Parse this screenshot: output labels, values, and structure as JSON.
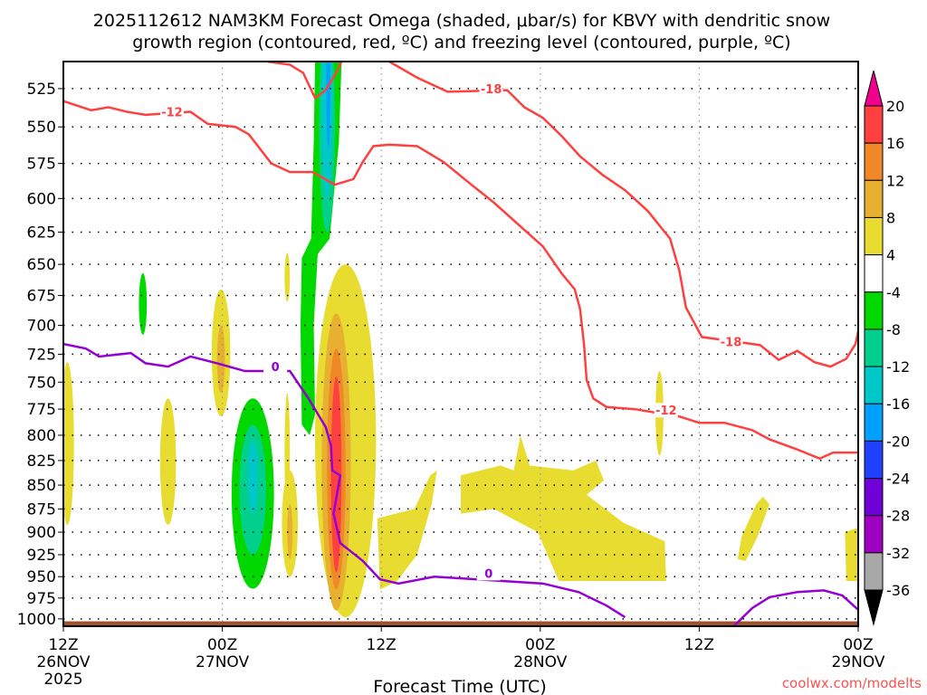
{
  "chart_data": {
    "type": "heatmap",
    "title_line1": "2025112612 NAM3KM Forecast Omega (shaded, μbar/s) for KBVY with dendritic snow",
    "title_line2": "growth region (contoured, red, ºC) and freezing level (contoured, purple, ºC)",
    "xlabel": "Forecast Time (UTC)",
    "credit": "coolwx.com/modelts",
    "xlim_hours": [
      0,
      60
    ],
    "ylim_hPa": [
      508,
      1009
    ],
    "yscale": "log",
    "y_ticks": [
      525,
      550,
      575,
      600,
      625,
      650,
      675,
      700,
      725,
      750,
      775,
      800,
      825,
      850,
      875,
      900,
      925,
      950,
      975,
      1000
    ],
    "x_ticks": [
      {
        "hour": 0,
        "l1": "12Z",
        "l2": "26NOV",
        "l3": "2025"
      },
      {
        "hour": 12,
        "l1": "00Z",
        "l2": "27NOV",
        "l3": ""
      },
      {
        "hour": 24,
        "l1": "12Z",
        "l2": "",
        "l3": ""
      },
      {
        "hour": 36,
        "l1": "00Z",
        "l2": "28NOV",
        "l3": ""
      },
      {
        "hour": 48,
        "l1": "12Z",
        "l2": "",
        "l3": ""
      },
      {
        "hour": 60,
        "l1": "00Z",
        "l2": "29NOV",
        "l3": ""
      }
    ],
    "colorbar": {
      "labels": [
        "20",
        "16",
        "12",
        "8",
        "4",
        "-4",
        "-8",
        "-12",
        "-16",
        "-20",
        "-24",
        "-28",
        "-32",
        "-36"
      ],
      "colors": [
        "#ff4040",
        "#f08828",
        "#e8b030",
        "#e8dc30",
        "#ffffff",
        "#00d800",
        "#00d08c",
        "#00c8c8",
        "#00a0ff",
        "#2040ff",
        "#7000d8",
        "#a000c0",
        "#a8a8a8"
      ],
      "over_color": "#f0008c",
      "under_color": "#000000"
    },
    "ground_color": "#a0522d",
    "omega_ellipses": [
      {
        "c": "#e8dc30",
        "h": 0.3,
        "dh": 0.5,
        "p": [
          732,
          892
        ]
      },
      {
        "c": "#00d800",
        "h": 6,
        "dh": 0.3,
        "p": [
          657,
          708
        ]
      },
      {
        "c": "#e8dc30",
        "h": 7.9,
        "dh": 0.6,
        "p": [
          765,
          892
        ]
      },
      {
        "c": "#e8dc30",
        "h": 11.9,
        "dh": 0.7,
        "p": [
          670,
          782
        ]
      },
      {
        "c": "#e8b030",
        "h": 11.9,
        "dh": 0.3,
        "p": [
          700,
          760
        ]
      },
      {
        "c": "#00d800",
        "h": 14.3,
        "dh": 1.6,
        "p": [
          765,
          964
        ]
      },
      {
        "c": "#00d08c",
        "h": 14.3,
        "dh": 1.0,
        "p": [
          790,
          925
        ]
      },
      {
        "c": "#00c8c8",
        "h": 14.3,
        "dh": 0.4,
        "p": [
          805,
          880
        ]
      },
      {
        "c": "#e8dc30",
        "h": 17.1,
        "dh": 0.6,
        "p": [
          835,
          950
        ]
      },
      {
        "c": "#e8b030",
        "h": 17.1,
        "dh": 0.2,
        "p": [
          870,
          930
        ]
      },
      {
        "c": "#e8dc30",
        "h": 16.9,
        "dh": 0.2,
        "p": [
          641,
          680
        ]
      },
      {
        "c": "#e8dc30",
        "h": 16.9,
        "dh": 0.2,
        "p": [
          760,
          880
        ]
      },
      {
        "c": "#00d08c",
        "h": 19.9,
        "dh": 0.6,
        "p": [
          480,
          625
        ]
      },
      {
        "c": "#00c8c8",
        "h": 19.9,
        "dh": 0.4,
        "p": [
          480,
          600
        ]
      },
      {
        "c": "#00a0ff",
        "h": 20.0,
        "dh": 0.15,
        "p": [
          480,
          565
        ]
      },
      {
        "c": "#e8dc30",
        "h": 21.3,
        "dh": 2.3,
        "p": [
          650,
          998
        ]
      },
      {
        "c": "#e8b030",
        "h": 20.6,
        "dh": 1.1,
        "p": [
          690,
          990
        ]
      },
      {
        "c": "#f08828",
        "h": 20.6,
        "dh": 0.7,
        "p": [
          720,
          965
        ]
      },
      {
        "c": "#ff4040",
        "h": 20.6,
        "dh": 0.4,
        "p": [
          745,
          945
        ]
      },
      {
        "c": "#e8dc30",
        "h": 45,
        "dh": 0.3,
        "p": [
          740,
          820
        ]
      }
    ],
    "omega_polygons": [
      {
        "c": "#00d800",
        "pts": [
          [
            19,
            508
          ],
          [
            21,
            508
          ],
          [
            20.8,
            560
          ],
          [
            20.1,
            630
          ],
          [
            19.2,
            642
          ],
          [
            18.9,
            700
          ],
          [
            19,
            780
          ],
          [
            18.6,
            800
          ],
          [
            18,
            790
          ],
          [
            17.9,
            700
          ],
          [
            18,
            645
          ],
          [
            18.7,
            630
          ],
          [
            18.9,
            560
          ]
        ]
      },
      {
        "c": "#e8dc30",
        "pts": [
          [
            23.9,
            965
          ],
          [
            23.7,
            885
          ],
          [
            26.5,
            875
          ],
          [
            27.7,
            840
          ],
          [
            28.2,
            835
          ],
          [
            27.8,
            870
          ],
          [
            26.7,
            925
          ],
          [
            25.2,
            955
          ]
        ]
      },
      {
        "c": "#e8dc30",
        "pts": [
          [
            30,
            880
          ],
          [
            30,
            840
          ],
          [
            33,
            830
          ],
          [
            34,
            835
          ],
          [
            34.5,
            800
          ],
          [
            35.2,
            830
          ],
          [
            38.5,
            835
          ],
          [
            40.2,
            825
          ],
          [
            40.8,
            845
          ],
          [
            39.5,
            860
          ],
          [
            42.3,
            890
          ],
          [
            45.4,
            910
          ],
          [
            45.5,
            955
          ],
          [
            37.4,
            955
          ],
          [
            35.8,
            900
          ],
          [
            32.5,
            875
          ]
        ]
      },
      {
        "c": "#e8dc30",
        "pts": [
          [
            50.9,
            930
          ],
          [
            51.2,
            905
          ],
          [
            52.3,
            870
          ],
          [
            52.8,
            862
          ],
          [
            53.3,
            870
          ],
          [
            52.4,
            905
          ],
          [
            51.5,
            932
          ]
        ]
      },
      {
        "c": "#e8dc30",
        "pts": [
          [
            59.1,
            955
          ],
          [
            59,
            900
          ],
          [
            60,
            895
          ],
          [
            60,
            955
          ]
        ]
      }
    ],
    "contours": [
      {
        "name": "minus12-contour",
        "value": "-12",
        "color": "#ff4040",
        "labels": [
          [
            8.2,
            540
          ],
          [
            45.5,
            776
          ]
        ],
        "pts": [
          [
            0,
            533
          ],
          [
            2.1,
            539
          ],
          [
            3.4,
            537
          ],
          [
            4.8,
            540
          ],
          [
            6.2,
            542
          ],
          [
            9.6,
            540
          ],
          [
            10.9,
            548
          ],
          [
            13,
            550
          ],
          [
            14,
            555
          ],
          [
            15.7,
            575
          ],
          [
            17.1,
            581
          ],
          [
            18.8,
            581
          ],
          [
            20.5,
            590
          ],
          [
            21.9,
            586
          ],
          [
            22.6,
            574
          ],
          [
            23.4,
            563
          ],
          [
            24.6,
            562
          ],
          [
            26.7,
            563
          ],
          [
            28.7,
            574
          ],
          [
            30.8,
            590
          ],
          [
            32.5,
            603
          ],
          [
            34.2,
            618
          ],
          [
            36.2,
            636
          ],
          [
            37.6,
            657
          ],
          [
            38.6,
            670
          ],
          [
            39,
            686
          ],
          [
            39.3,
            716
          ],
          [
            39.5,
            748
          ],
          [
            40,
            765
          ],
          [
            41,
            773
          ],
          [
            43.1,
            775
          ],
          [
            46.5,
            782
          ],
          [
            48,
            788
          ],
          [
            49.9,
            788
          ],
          [
            52,
            795
          ],
          [
            53.3,
            804
          ],
          [
            55.4,
            814
          ],
          [
            57.1,
            823
          ],
          [
            58.1,
            817
          ],
          [
            60,
            817
          ]
        ]
      },
      {
        "name": "minus18-contour-top",
        "value": "-18",
        "color": "#ff4040",
        "labels": [],
        "pts": [
          [
            15.4,
            508
          ],
          [
            17.1,
            510
          ],
          [
            18.1,
            515
          ],
          [
            19,
            531
          ],
          [
            19.8,
            526
          ],
          [
            20.6,
            515
          ],
          [
            21,
            508
          ]
        ]
      },
      {
        "name": "minus18-contour",
        "value": "-18",
        "color": "#ff4040",
        "labels": [
          [
            32.3,
            525
          ],
          [
            50.4,
            714
          ]
        ],
        "pts": [
          [
            24.6,
            508
          ],
          [
            26.7,
            518
          ],
          [
            29,
            527
          ],
          [
            33.5,
            526
          ],
          [
            34.8,
            537
          ],
          [
            36.2,
            544
          ],
          [
            37.6,
            556
          ],
          [
            39,
            570
          ],
          [
            40.7,
            583
          ],
          [
            42.4,
            594
          ],
          [
            44.1,
            609
          ],
          [
            45.8,
            630
          ],
          [
            46.5,
            655
          ],
          [
            47,
            685
          ],
          [
            48.2,
            710
          ],
          [
            52.6,
            717
          ],
          [
            54,
            730
          ],
          [
            55.4,
            722
          ],
          [
            56.7,
            732
          ],
          [
            57.9,
            736
          ],
          [
            59.1,
            729
          ],
          [
            59.8,
            716
          ],
          [
            60,
            705
          ]
        ]
      },
      {
        "name": "freezing-level-contour",
        "value": "0",
        "color": "#9400d3",
        "labels": [
          [
            16,
            736
          ],
          [
            32.1,
            946
          ]
        ],
        "pts": [
          [
            0,
            716
          ],
          [
            1.7,
            720
          ],
          [
            2.7,
            727
          ],
          [
            5.1,
            724
          ],
          [
            6.2,
            733
          ],
          [
            7.9,
            736
          ],
          [
            9.6,
            727
          ],
          [
            11.6,
            733
          ],
          [
            13.7,
            740
          ],
          [
            17.1,
            740
          ],
          [
            18.5,
            765
          ],
          [
            19.8,
            792
          ],
          [
            20.2,
            810
          ],
          [
            20.3,
            835
          ],
          [
            20.9,
            840
          ],
          [
            20.4,
            880
          ],
          [
            20.9,
            912
          ],
          [
            22.6,
            932
          ],
          [
            23.9,
            953
          ],
          [
            25.3,
            958
          ],
          [
            28,
            950
          ],
          [
            36.2,
            958
          ],
          [
            38.9,
            968
          ],
          [
            41,
            984
          ],
          [
            42.4,
            998
          ]
        ]
      },
      {
        "name": "freezing-level-contour-2",
        "value": "0",
        "color": "#9400d3",
        "labels": [],
        "pts": [
          [
            50.6,
            1009
          ],
          [
            52,
            987
          ],
          [
            53.3,
            974
          ],
          [
            55.4,
            968
          ],
          [
            57.4,
            966
          ],
          [
            58.8,
            972
          ],
          [
            60,
            989
          ]
        ]
      }
    ]
  }
}
